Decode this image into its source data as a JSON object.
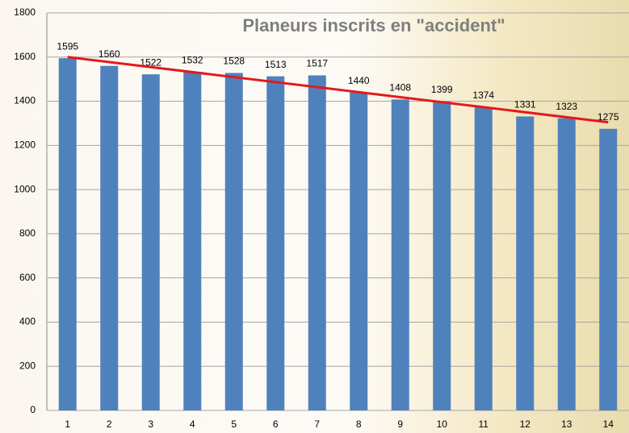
{
  "chart_data": {
    "type": "bar",
    "title": "Planeurs inscrits en \"accident\"",
    "categories": [
      "1",
      "2",
      "3",
      "4",
      "5",
      "6",
      "7",
      "8",
      "9",
      "10",
      "11",
      "12",
      "13",
      "14"
    ],
    "values": [
      1595,
      1560,
      1522,
      1532,
      1528,
      1513,
      1517,
      1440,
      1408,
      1399,
      1374,
      1331,
      1323,
      1275
    ],
    "color": "#4f81bd",
    "ylim": [
      0,
      1800
    ],
    "yticks": [
      0,
      200,
      400,
      600,
      800,
      1000,
      1200,
      1400,
      1600,
      1800
    ],
    "grid": true,
    "trendline": {
      "color": "#e31a1c",
      "start": 1600,
      "end": 1305
    }
  }
}
